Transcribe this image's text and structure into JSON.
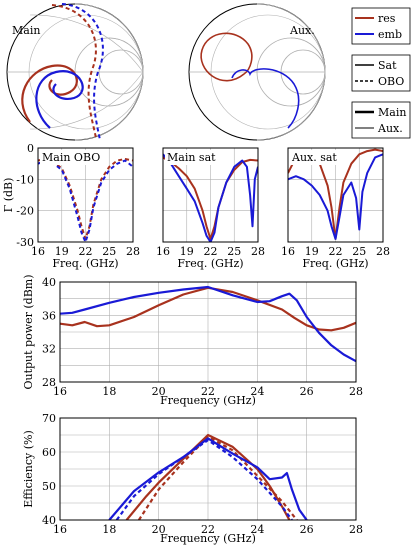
{
  "colors": {
    "res": "#a8321e",
    "emb": "#1a1ad6",
    "grid": "#b0b0b0",
    "axis": "#000000"
  },
  "legend": {
    "series": [
      {
        "label": "res",
        "color": "#a8321e",
        "style": "solid"
      },
      {
        "label": "emb",
        "color": "#1a1ad6",
        "style": "solid"
      }
    ],
    "conditions": [
      {
        "label": "Sat",
        "style": "solid"
      },
      {
        "label": "OBO",
        "style": "dashed"
      }
    ],
    "branches": [
      {
        "label": "Main",
        "weight": "thick"
      },
      {
        "label": "Aux.",
        "weight": "thin"
      }
    ]
  },
  "smith_labels": {
    "main": "Main",
    "aux": "Aux."
  },
  "chart_data": [
    {
      "type": "line",
      "title": "Main OBO",
      "xlabel": "Freq. (GHz)",
      "ylabel": "Γ (dB)",
      "xlim": [
        16,
        28
      ],
      "ylim": [
        -30,
        0
      ],
      "xticks": [
        "16",
        "19",
        "22",
        "25",
        "28"
      ],
      "yticks": [
        "0",
        "-10",
        "-20",
        "-30"
      ],
      "series": [
        {
          "name": "res",
          "style": "dashed",
          "x": [
            16,
            17,
            18,
            19,
            20,
            21,
            21.5,
            22,
            22.5,
            23,
            24,
            25,
            26,
            27,
            28
          ],
          "y": [
            -4,
            -3.5,
            -4.5,
            -6.5,
            -12,
            -20,
            -25,
            -29,
            -25,
            -18,
            -10,
            -6,
            -4,
            -3.5,
            -4
          ]
        },
        {
          "name": "emb",
          "style": "dashed",
          "x": [
            16,
            17,
            18,
            19,
            20,
            21,
            21.5,
            22,
            22.5,
            23,
            24,
            25,
            26,
            27,
            28
          ],
          "y": [
            -5,
            -4,
            -5,
            -7,
            -13,
            -22,
            -27,
            -30,
            -26,
            -19,
            -11,
            -7,
            -5,
            -4,
            -6
          ]
        }
      ]
    },
    {
      "type": "line",
      "title": "Main sat",
      "xlabel": "Freq. (GHz)",
      "xlim": [
        16,
        28
      ],
      "ylim": [
        -30,
        0
      ],
      "xticks": [
        "16",
        "19",
        "22",
        "25",
        "28"
      ],
      "series": [
        {
          "name": "res",
          "style": "solid",
          "x": [
            16,
            17,
            18,
            19,
            20,
            21,
            21.5,
            22,
            22.5,
            23,
            24,
            25,
            26,
            27,
            28
          ],
          "y": [
            -3,
            -4.5,
            -6.5,
            -9,
            -13,
            -20,
            -25,
            -29,
            -25,
            -19,
            -11,
            -7,
            -4.5,
            -3.8,
            -4
          ]
        },
        {
          "name": "emb",
          "style": "solid",
          "x": [
            16,
            17,
            18,
            19,
            20,
            21,
            21.5,
            22,
            22.5,
            23,
            24,
            25,
            26,
            26.6,
            27,
            27.3,
            27.6,
            28
          ],
          "y": [
            -2,
            -5,
            -9,
            -13,
            -17,
            -24,
            -28,
            -30,
            -27,
            -19,
            -11,
            -6,
            -4,
            -6,
            -15,
            -25,
            -10,
            -6
          ]
        }
      ]
    },
    {
      "type": "line",
      "title": "Aux. sat",
      "xlabel": "Freq. (GHz)",
      "xlim": [
        16,
        28
      ],
      "ylim": [
        -30,
        0
      ],
      "xticks": [
        "16",
        "19",
        "22",
        "25",
        "28"
      ],
      "series": [
        {
          "name": "res",
          "style": "solid",
          "x": [
            16,
            17,
            18,
            19,
            20,
            21,
            21.5,
            22,
            22.5,
            23,
            24,
            25,
            26,
            27,
            28
          ],
          "y": [
            -8,
            -3,
            -1,
            -2,
            -5,
            -12,
            -19,
            -29,
            -19,
            -11,
            -5,
            -2,
            -1,
            -0.5,
            -1
          ]
        },
        {
          "name": "emb",
          "style": "solid",
          "x": [
            16,
            17,
            18,
            19,
            20,
            21,
            21.5,
            22,
            22.5,
            23,
            24,
            24.6,
            25,
            25.4,
            26,
            27,
            28
          ],
          "y": [
            -10,
            -9,
            -10,
            -12,
            -15,
            -20,
            -25,
            -29,
            -22,
            -15,
            -11,
            -16,
            -26,
            -14,
            -8,
            -3,
            -2
          ]
        }
      ]
    },
    {
      "type": "line",
      "xlabel": "Frequency (GHz)",
      "ylabel": "Output power (dBm)",
      "xlim": [
        16,
        28
      ],
      "ylim": [
        28,
        40
      ],
      "xticks": [
        "16",
        "18",
        "20",
        "22",
        "24",
        "26",
        "28"
      ],
      "yticks": [
        "28",
        "32",
        "36",
        "40"
      ],
      "series": [
        {
          "name": "res",
          "style": "solid",
          "x": [
            16,
            16.5,
            17,
            17.5,
            18,
            19,
            20,
            21,
            22,
            23,
            24,
            25,
            25.5,
            26,
            26.5,
            27,
            27.5,
            28
          ],
          "y": [
            35,
            34.8,
            35.2,
            34.7,
            34.8,
            35.8,
            37.2,
            38.5,
            39.3,
            38.8,
            37.8,
            36.7,
            35.7,
            34.8,
            34.3,
            34.2,
            34.5,
            35.1
          ]
        },
        {
          "name": "emb",
          "style": "solid",
          "x": [
            16,
            16.5,
            17,
            18,
            19,
            20,
            21,
            22,
            23,
            24,
            24.5,
            25,
            25.3,
            25.6,
            26,
            26.5,
            27,
            27.5,
            28
          ],
          "y": [
            36.2,
            36.3,
            36.7,
            37.5,
            38.2,
            38.7,
            39.1,
            39.4,
            38.4,
            37.6,
            37.7,
            38.3,
            38.6,
            37.8,
            35.8,
            33.9,
            32.4,
            31.3,
            30.5
          ]
        }
      ]
    },
    {
      "type": "line",
      "xlabel": "Frequency (GHz)",
      "ylabel": "Efficiency (%)",
      "xlim": [
        16,
        28
      ],
      "ylim": [
        40,
        70
      ],
      "xticks": [
        "16",
        "18",
        "20",
        "22",
        "24",
        "26",
        "28"
      ],
      "yticks": [
        "40",
        "50",
        "60",
        "70"
      ],
      "series": [
        {
          "name": "res sat",
          "style": "solid",
          "x": [
            18.7,
            19.5,
            20,
            21,
            22,
            23,
            24,
            24.5,
            25,
            25.3
          ],
          "y": [
            40,
            47,
            51,
            58,
            65,
            61.5,
            55,
            50,
            44,
            40
          ]
        },
        {
          "name": "res OBO",
          "style": "dashed",
          "x": [
            19.2,
            20,
            21,
            22,
            23,
            24,
            25,
            25.6
          ],
          "y": [
            40,
            49,
            57,
            64.5,
            60.5,
            53,
            45.5,
            40
          ]
        },
        {
          "name": "emb sat",
          "style": "solid",
          "x": [
            18,
            19,
            20,
            21,
            22,
            23,
            24,
            24.5,
            25,
            25.2,
            25.4,
            25.7,
            26
          ],
          "y": [
            40,
            48.5,
            54,
            58.5,
            64,
            59.5,
            55.5,
            52,
            52.5,
            53.8,
            49,
            43,
            40
          ]
        },
        {
          "name": "emb OBO",
          "style": "dashed",
          "x": [
            18.3,
            19,
            20,
            21,
            22,
            23,
            24,
            25,
            25.4
          ],
          "y": [
            40,
            47,
            53.5,
            58.5,
            63.5,
            58.5,
            52,
            44,
            40
          ]
        }
      ]
    }
  ]
}
